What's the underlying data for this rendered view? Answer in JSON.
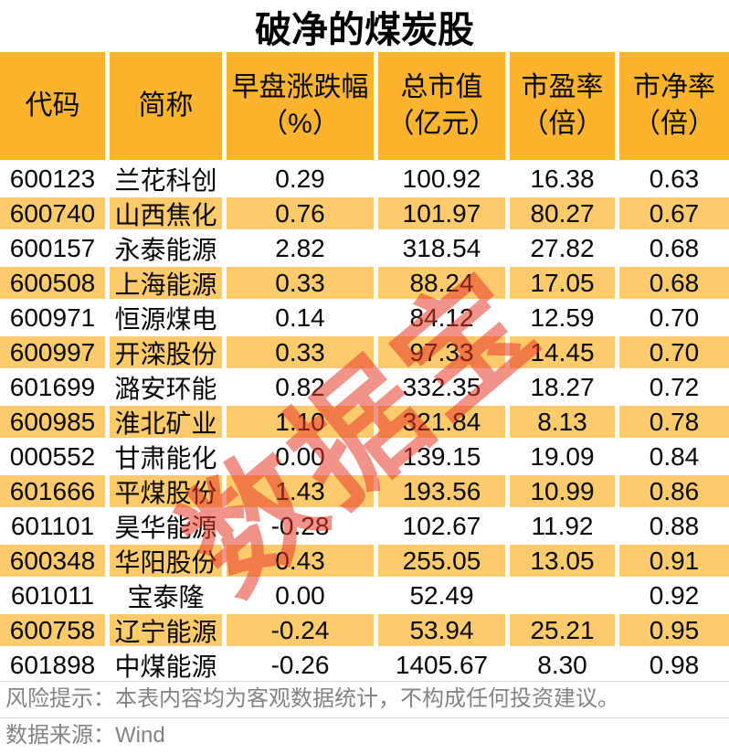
{
  "title": "破净的煤炭股",
  "watermark": "数据宝",
  "colors": {
    "header_bg": "#FCB42E",
    "row_alt_bg": "#FDCB6B",
    "watermark_color": "rgba(232,58,40,0.55)",
    "footer_text": "#838383"
  },
  "table": {
    "columns": [
      "代码",
      "简称",
      "早盘涨跌幅\n（%）",
      "总市值\n（亿元）",
      "市盈率\n（倍）",
      "市净率\n（倍）"
    ],
    "rows": [
      [
        "600123",
        "兰花科创",
        "0.29",
        "100.92",
        "16.38",
        "0.63"
      ],
      [
        "600740",
        "山西焦化",
        "0.76",
        "101.97",
        "80.27",
        "0.67"
      ],
      [
        "600157",
        "永泰能源",
        "2.82",
        "318.54",
        "27.82",
        "0.68"
      ],
      [
        "600508",
        "上海能源",
        "0.33",
        "88.24",
        "17.05",
        "0.68"
      ],
      [
        "600971",
        "恒源煤电",
        "0.14",
        "84.12",
        "12.59",
        "0.70"
      ],
      [
        "600997",
        "开滦股份",
        "0.33",
        "97.33",
        "14.45",
        "0.70"
      ],
      [
        "601699",
        "潞安环能",
        "0.82",
        "332.35",
        "18.27",
        "0.72"
      ],
      [
        "600985",
        "淮北矿业",
        "1.10",
        "321.84",
        "8.13",
        "0.78"
      ],
      [
        "000552",
        "甘肃能化",
        "0.00",
        "139.15",
        "19.09",
        "0.84"
      ],
      [
        "601666",
        "平煤股份",
        "1.43",
        "193.56",
        "10.99",
        "0.86"
      ],
      [
        "601101",
        "昊华能源",
        "-0.28",
        "102.67",
        "11.92",
        "0.88"
      ],
      [
        "600348",
        "华阳股份",
        "0.43",
        "255.05",
        "13.05",
        "0.91"
      ],
      [
        "601011",
        "宝泰隆",
        "0.00",
        "52.49",
        "",
        "0.92"
      ],
      [
        "600758",
        "辽宁能源",
        "-0.24",
        "53.94",
        "25.21",
        "0.95"
      ],
      [
        "601898",
        "中煤能源",
        "-0.26",
        "1405.67",
        "8.30",
        "0.98"
      ]
    ]
  },
  "footer": {
    "risk_note": "风险提示：本表内容均为客观数据统计，不构成任何投资建议。",
    "source": "数据来源：Wind"
  },
  "chart_data": {
    "type": "table",
    "title": "破净的煤炭股",
    "columns": [
      "代码",
      "简称",
      "早盘涨跌幅（%）",
      "总市值（亿元）",
      "市盈率（倍）",
      "市净率（倍）"
    ],
    "rows": [
      [
        "600123",
        "兰花科创",
        0.29,
        100.92,
        16.38,
        0.63
      ],
      [
        "600740",
        "山西焦化",
        0.76,
        101.97,
        80.27,
        0.67
      ],
      [
        "600157",
        "永泰能源",
        2.82,
        318.54,
        27.82,
        0.68
      ],
      [
        "600508",
        "上海能源",
        0.33,
        88.24,
        17.05,
        0.68
      ],
      [
        "600971",
        "恒源煤电",
        0.14,
        84.12,
        12.59,
        0.7
      ],
      [
        "600997",
        "开滦股份",
        0.33,
        97.33,
        14.45,
        0.7
      ],
      [
        "601699",
        "潞安环能",
        0.82,
        332.35,
        18.27,
        0.72
      ],
      [
        "600985",
        "淮北矿业",
        1.1,
        321.84,
        8.13,
        0.78
      ],
      [
        "000552",
        "甘肃能化",
        0.0,
        139.15,
        19.09,
        0.84
      ],
      [
        "601666",
        "平煤股份",
        1.43,
        193.56,
        10.99,
        0.86
      ],
      [
        "601101",
        "昊华能源",
        -0.28,
        102.67,
        11.92,
        0.88
      ],
      [
        "600348",
        "华阳股份",
        0.43,
        255.05,
        13.05,
        0.91
      ],
      [
        "601011",
        "宝泰隆",
        0.0,
        52.49,
        null,
        0.92
      ],
      [
        "600758",
        "辽宁能源",
        -0.24,
        53.94,
        25.21,
        0.95
      ],
      [
        "601898",
        "中煤能源",
        -0.26,
        1405.67,
        8.3,
        0.98
      ]
    ],
    "source": "Wind"
  }
}
